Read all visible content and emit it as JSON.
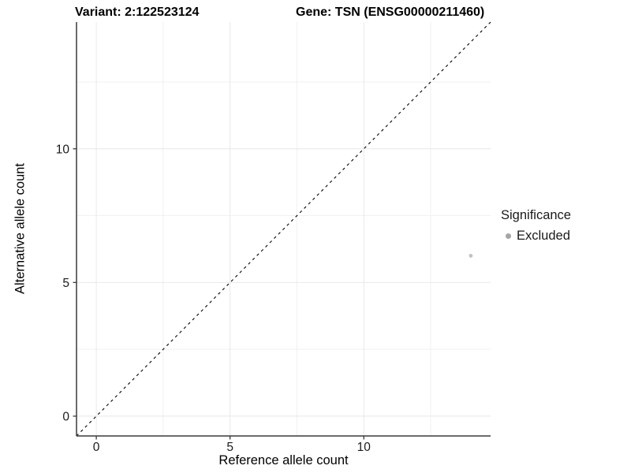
{
  "chart_data": {
    "type": "scatter",
    "title_left": "Variant: 2:122523124",
    "title_right": "Gene: TSN (ENSG00000211460)",
    "xlabel": "Reference allele count",
    "ylabel": "Alternative allele count",
    "xlim": [
      -0.74,
      14.74
    ],
    "ylim": [
      -0.74,
      14.74
    ],
    "x_major_ticks": [
      0,
      5,
      10
    ],
    "y_major_ticks": [
      0,
      5,
      10
    ],
    "x_minor_ticks": [
      2.5,
      7.5,
      12.5
    ],
    "y_minor_ticks": [
      2.5,
      7.5,
      12.5
    ],
    "grid": "major and minor gridlines, light gray, no panel border, left and bottom axis lines only",
    "points": [
      {
        "x": 14,
        "y": 6,
        "significance": "Excluded"
      }
    ],
    "reference_line": {
      "kind": "identity y=x across full panel",
      "style": "dashed",
      "color": "#000000"
    },
    "legend": {
      "title": "Significance",
      "position": "right",
      "items": [
        {
          "label": "Excluded",
          "marker": "circle",
          "color": "#a6a6a6"
        }
      ]
    },
    "colors": {
      "point": "#c2c2c2",
      "axis": "#3a3a3a",
      "tick_label": "#1a1a1a",
      "grid_major": "#e8e8e8",
      "grid_minor": "#f1f1f1",
      "background": "#ffffff"
    }
  }
}
